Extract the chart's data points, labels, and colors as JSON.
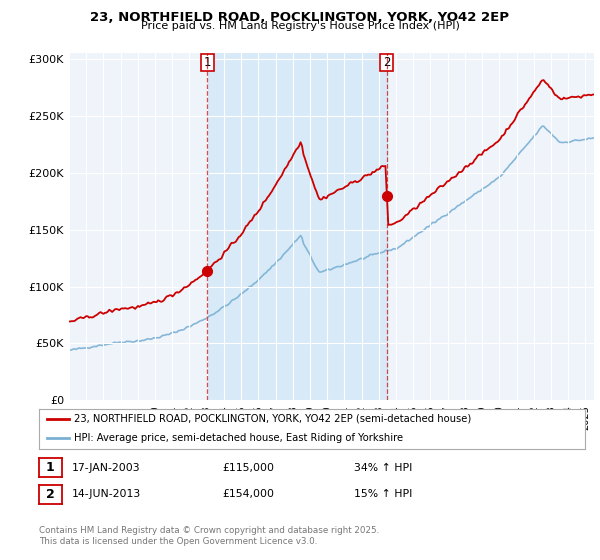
{
  "title": "23, NORTHFIELD ROAD, POCKLINGTON, YORK, YO42 2EP",
  "subtitle": "Price paid vs. HM Land Registry's House Price Index (HPI)",
  "ylabel_ticks": [
    "£0",
    "£50K",
    "£100K",
    "£150K",
    "£200K",
    "£250K",
    "£300K"
  ],
  "ytick_values": [
    0,
    50000,
    100000,
    150000,
    200000,
    250000,
    300000
  ],
  "ylim": [
    0,
    305000
  ],
  "xlim_start": 1995.0,
  "xlim_end": 2025.5,
  "red_line_color": "#cc0000",
  "blue_line_color": "#7ab0d4",
  "vline_color": "#cc0000",
  "shade_color": "#d8eaf7",
  "sale1_date": 2003.04,
  "sale1_price": 115000,
  "sale2_date": 2013.45,
  "sale2_price": 154000,
  "legend_entry1": "23, NORTHFIELD ROAD, POCKLINGTON, YORK, YO42 2EP (semi-detached house)",
  "legend_entry2": "HPI: Average price, semi-detached house, East Riding of Yorkshire",
  "table_row1": [
    "1",
    "17-JAN-2003",
    "£115,000",
    "34% ↑ HPI"
  ],
  "table_row2": [
    "2",
    "14-JUN-2013",
    "£154,000",
    "15% ↑ HPI"
  ],
  "footer": "Contains HM Land Registry data © Crown copyright and database right 2025.\nThis data is licensed under the Open Government Licence v3.0.",
  "fig_bg_color": "#ffffff",
  "plot_bg_color": "#eef4fa"
}
